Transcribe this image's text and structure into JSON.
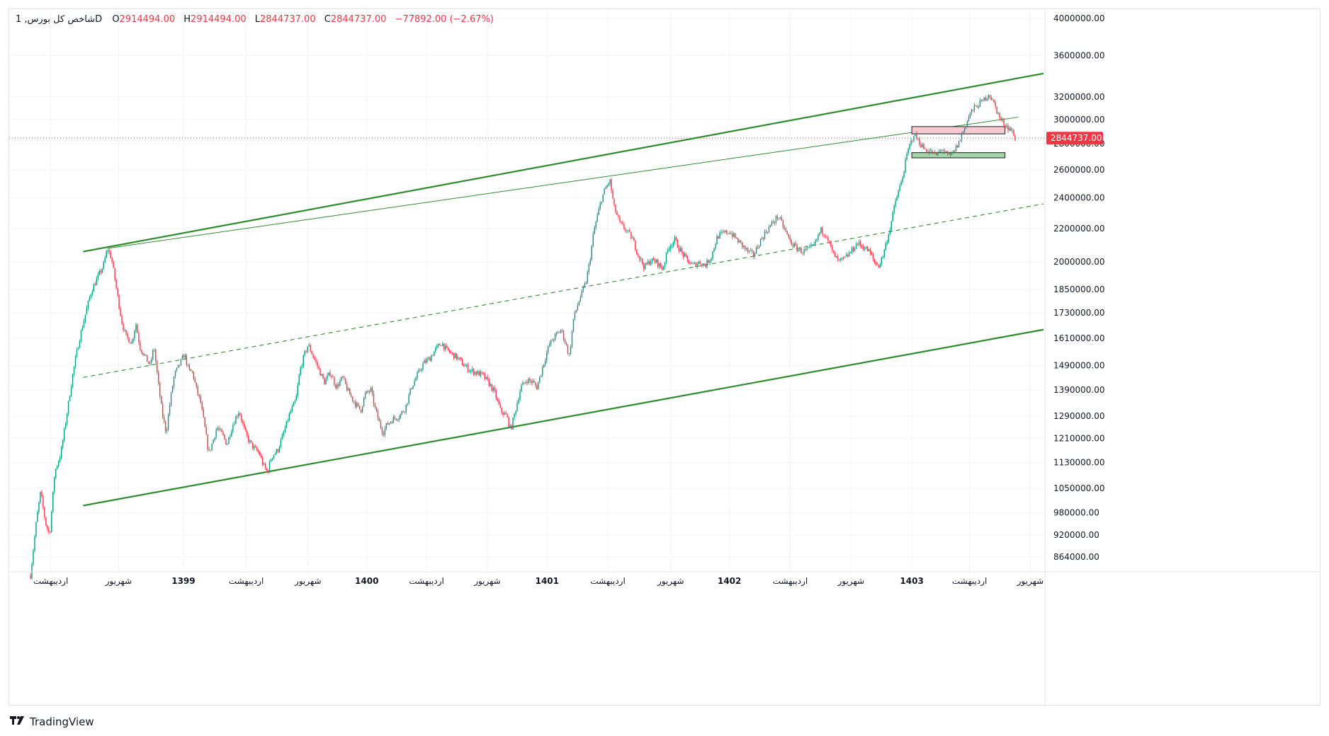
{
  "legend": {
    "symbol": "1 ,شاخص کل بورس",
    "interval": "D",
    "open_label": "O",
    "open": "2914494.00",
    "high_label": "H",
    "high": "2914494.00",
    "low_label": "L",
    "low": "2844737.00",
    "close_label": "C",
    "close": "2844737.00",
    "change": "−77892.00 (−2.67%)"
  },
  "brand": {
    "name": "TradingView"
  },
  "colors": {
    "up": "#089981",
    "down": "#f23645",
    "channel": "#2e8b2e",
    "resistance_box": "#f8c9cf",
    "support_box": "#a5d6a7",
    "price_label": "#f23645"
  },
  "chart_data": {
    "type": "candlestick",
    "title": "",
    "yscale": "log",
    "ylim": [
      800000,
      4000000
    ],
    "current_price": 2844737.0,
    "current_price_label": "2844737.00",
    "y_ticks": [
      {
        "v": 4000000,
        "label": "4000000.00"
      },
      {
        "v": 3600000,
        "label": "3600000.00"
      },
      {
        "v": 3200000,
        "label": "3200000.00"
      },
      {
        "v": 3000000,
        "label": "3000000.00"
      },
      {
        "v": 2800000,
        "label": "2800000.00"
      },
      {
        "v": 2600000,
        "label": "2600000.00"
      },
      {
        "v": 2400000,
        "label": "2400000.00"
      },
      {
        "v": 2200000,
        "label": "2200000.00"
      },
      {
        "v": 2000000,
        "label": "2000000.00"
      },
      {
        "v": 1850000,
        "label": "1850000.00"
      },
      {
        "v": 1730000,
        "label": "1730000.00"
      },
      {
        "v": 1610000,
        "label": "1610000.00"
      },
      {
        "v": 1490000,
        "label": "1490000.00"
      },
      {
        "v": 1390000,
        "label": "1390000.00"
      },
      {
        "v": 1290000,
        "label": "1290000.00"
      },
      {
        "v": 1210000,
        "label": "1210000.00"
      },
      {
        "v": 1130000,
        "label": "1130000.00"
      },
      {
        "v": 1050000,
        "label": "1050000.00"
      },
      {
        "v": 980000,
        "label": "980000.00"
      },
      {
        "v": 920000,
        "label": "920000.00"
      },
      {
        "v": 864000,
        "label": "864000.00"
      }
    ],
    "x_ticks": [
      {
        "t": 0.02,
        "label": "اردیبهشت",
        "bold": false
      },
      {
        "t": 0.087,
        "label": "شهریور",
        "bold": false
      },
      {
        "t": 0.151,
        "label": "1399",
        "bold": true
      },
      {
        "t": 0.213,
        "label": "اردیبهشت",
        "bold": false
      },
      {
        "t": 0.274,
        "label": "شهریور",
        "bold": false
      },
      {
        "t": 0.332,
        "label": "1400",
        "bold": true
      },
      {
        "t": 0.391,
        "label": "اردیبهشت",
        "bold": false
      },
      {
        "t": 0.451,
        "label": "شهریور",
        "bold": false
      },
      {
        "t": 0.51,
        "label": "1401",
        "bold": true
      },
      {
        "t": 0.57,
        "label": "اردیبهشت",
        "bold": false
      },
      {
        "t": 0.632,
        "label": "شهریور",
        "bold": false
      },
      {
        "t": 0.69,
        "label": "1402",
        "bold": true
      },
      {
        "t": 0.75,
        "label": "اردیبهشت",
        "bold": false
      },
      {
        "t": 0.81,
        "label": "شهریور",
        "bold": false
      },
      {
        "t": 0.87,
        "label": "1403",
        "bold": true
      },
      {
        "t": 0.927,
        "label": "اردیبهشت",
        "bold": false
      },
      {
        "t": 0.987,
        "label": "شهریور",
        "bold": false
      }
    ],
    "price_path": [
      [
        0.0,
        820000
      ],
      [
        0.006,
        960000
      ],
      [
        0.01,
        1040000
      ],
      [
        0.015,
        950000
      ],
      [
        0.019,
        920000
      ],
      [
        0.024,
        1100000
      ],
      [
        0.03,
        1160000
      ],
      [
        0.036,
        1300000
      ],
      [
        0.042,
        1460000
      ],
      [
        0.048,
        1600000
      ],
      [
        0.054,
        1720000
      ],
      [
        0.06,
        1840000
      ],
      [
        0.066,
        1910000
      ],
      [
        0.072,
        1980000
      ],
      [
        0.076,
        2080000
      ],
      [
        0.08,
        2020000
      ],
      [
        0.084,
        1880000
      ],
      [
        0.09,
        1690000
      ],
      [
        0.094,
        1620000
      ],
      [
        0.1,
        1590000
      ],
      [
        0.104,
        1680000
      ],
      [
        0.108,
        1570000
      ],
      [
        0.114,
        1520000
      ],
      [
        0.118,
        1490000
      ],
      [
        0.122,
        1570000
      ],
      [
        0.126,
        1420000
      ],
      [
        0.13,
        1300000
      ],
      [
        0.134,
        1230000
      ],
      [
        0.138,
        1350000
      ],
      [
        0.142,
        1450000
      ],
      [
        0.148,
        1500000
      ],
      [
        0.152,
        1540000
      ],
      [
        0.156,
        1470000
      ],
      [
        0.16,
        1460000
      ],
      [
        0.164,
        1390000
      ],
      [
        0.168,
        1340000
      ],
      [
        0.172,
        1250000
      ],
      [
        0.176,
        1160000
      ],
      [
        0.18,
        1200000
      ],
      [
        0.184,
        1250000
      ],
      [
        0.19,
        1220000
      ],
      [
        0.194,
        1190000
      ],
      [
        0.198,
        1240000
      ],
      [
        0.202,
        1280000
      ],
      [
        0.206,
        1310000
      ],
      [
        0.212,
        1230000
      ],
      [
        0.216,
        1200000
      ],
      [
        0.22,
        1180000
      ],
      [
        0.226,
        1160000
      ],
      [
        0.23,
        1120000
      ],
      [
        0.234,
        1100000
      ],
      [
        0.238,
        1150000
      ],
      [
        0.244,
        1170000
      ],
      [
        0.25,
        1230000
      ],
      [
        0.256,
        1300000
      ],
      [
        0.262,
        1350000
      ],
      [
        0.266,
        1470000
      ],
      [
        0.27,
        1530000
      ],
      [
        0.274,
        1580000
      ],
      [
        0.278,
        1540000
      ],
      [
        0.284,
        1480000
      ],
      [
        0.29,
        1420000
      ],
      [
        0.296,
        1460000
      ],
      [
        0.302,
        1400000
      ],
      [
        0.308,
        1440000
      ],
      [
        0.314,
        1380000
      ],
      [
        0.32,
        1340000
      ],
      [
        0.326,
        1310000
      ],
      [
        0.33,
        1370000
      ],
      [
        0.336,
        1390000
      ],
      [
        0.34,
        1320000
      ],
      [
        0.344,
        1270000
      ],
      [
        0.348,
        1230000
      ],
      [
        0.352,
        1260000
      ],
      [
        0.358,
        1280000
      ],
      [
        0.364,
        1290000
      ],
      [
        0.37,
        1320000
      ],
      [
        0.376,
        1400000
      ],
      [
        0.382,
        1450000
      ],
      [
        0.388,
        1500000
      ],
      [
        0.394,
        1520000
      ],
      [
        0.4,
        1560000
      ],
      [
        0.406,
        1590000
      ],
      [
        0.41,
        1560000
      ],
      [
        0.416,
        1540000
      ],
      [
        0.422,
        1520000
      ],
      [
        0.428,
        1490000
      ],
      [
        0.434,
        1470000
      ],
      [
        0.44,
        1460000
      ],
      [
        0.446,
        1450000
      ],
      [
        0.452,
        1420000
      ],
      [
        0.458,
        1380000
      ],
      [
        0.464,
        1310000
      ],
      [
        0.47,
        1290000
      ],
      [
        0.474,
        1240000
      ],
      [
        0.478,
        1300000
      ],
      [
        0.484,
        1400000
      ],
      [
        0.49,
        1430000
      ],
      [
        0.496,
        1420000
      ],
      [
        0.5,
        1400000
      ],
      [
        0.506,
        1490000
      ],
      [
        0.512,
        1580000
      ],
      [
        0.518,
        1620000
      ],
      [
        0.524,
        1650000
      ],
      [
        0.528,
        1590000
      ],
      [
        0.532,
        1530000
      ],
      [
        0.536,
        1700000
      ],
      [
        0.542,
        1800000
      ],
      [
        0.548,
        1880000
      ],
      [
        0.552,
        2000000
      ],
      [
        0.556,
        2180000
      ],
      [
        0.56,
        2290000
      ],
      [
        0.564,
        2400000
      ],
      [
        0.568,
        2470000
      ],
      [
        0.572,
        2520000
      ],
      [
        0.576,
        2340000
      ],
      [
        0.582,
        2230000
      ],
      [
        0.588,
        2190000
      ],
      [
        0.594,
        2140000
      ],
      [
        0.6,
        2040000
      ],
      [
        0.606,
        1970000
      ],
      [
        0.612,
        2010000
      ],
      [
        0.618,
        2000000
      ],
      [
        0.624,
        1960000
      ],
      [
        0.63,
        2090000
      ],
      [
        0.636,
        2130000
      ],
      [
        0.642,
        2060000
      ],
      [
        0.648,
        2010000
      ],
      [
        0.654,
        1980000
      ],
      [
        0.66,
        2000000
      ],
      [
        0.666,
        1980000
      ],
      [
        0.672,
        2030000
      ],
      [
        0.678,
        2150000
      ],
      [
        0.684,
        2170000
      ],
      [
        0.69,
        2180000
      ],
      [
        0.696,
        2140000
      ],
      [
        0.702,
        2100000
      ],
      [
        0.708,
        2060000
      ],
      [
        0.714,
        2040000
      ],
      [
        0.72,
        2120000
      ],
      [
        0.726,
        2180000
      ],
      [
        0.732,
        2230000
      ],
      [
        0.738,
        2280000
      ],
      [
        0.744,
        2200000
      ],
      [
        0.75,
        2120000
      ],
      [
        0.756,
        2080000
      ],
      [
        0.762,
        2060000
      ],
      [
        0.768,
        2070000
      ],
      [
        0.774,
        2100000
      ],
      [
        0.78,
        2190000
      ],
      [
        0.786,
        2160000
      ],
      [
        0.792,
        2050000
      ],
      [
        0.798,
        2000000
      ],
      [
        0.804,
        2020000
      ],
      [
        0.81,
        2060000
      ],
      [
        0.816,
        2110000
      ],
      [
        0.822,
        2090000
      ],
      [
        0.828,
        2060000
      ],
      [
        0.834,
        1990000
      ],
      [
        0.838,
        1980000
      ],
      [
        0.842,
        2050000
      ],
      [
        0.848,
        2190000
      ],
      [
        0.854,
        2380000
      ],
      [
        0.86,
        2520000
      ],
      [
        0.866,
        2740000
      ],
      [
        0.872,
        2880000
      ],
      [
        0.876,
        2830000
      ],
      [
        0.882,
        2760000
      ],
      [
        0.888,
        2740000
      ],
      [
        0.894,
        2710000
      ],
      [
        0.9,
        2760000
      ],
      [
        0.906,
        2700000
      ],
      [
        0.91,
        2720000
      ],
      [
        0.916,
        2800000
      ],
      [
        0.922,
        2930000
      ],
      [
        0.928,
        3060000
      ],
      [
        0.934,
        3120000
      ],
      [
        0.94,
        3160000
      ],
      [
        0.946,
        3230000
      ],
      [
        0.952,
        3120000
      ],
      [
        0.958,
        2990000
      ],
      [
        0.964,
        2940000
      ],
      [
        0.968,
        2914494
      ],
      [
        0.972,
        2844737
      ]
    ],
    "trendlines": [
      {
        "name": "channel-top",
        "style": "solid-thick",
        "p1": [
          0.052,
          2060000
        ],
        "p2": [
          1.0,
          3420000
        ]
      },
      {
        "name": "channel-bottom",
        "style": "solid-thick",
        "p1": [
          0.052,
          1000000
        ],
        "p2": [
          1.0,
          1650000
        ]
      },
      {
        "name": "median-line",
        "style": "dashed",
        "p1": [
          0.052,
          1440000
        ],
        "p2": [
          1.0,
          2360000
        ]
      },
      {
        "name": "resistance-line",
        "style": "solid-thin",
        "p1": [
          0.077,
          2080000
        ],
        "p2": [
          0.975,
          3020000
        ]
      }
    ],
    "zones": [
      {
        "name": "resistance-box",
        "x": [
          0.87,
          0.962
        ],
        "y": [
          2880000,
          2940000
        ],
        "color": "#f8c9cf"
      },
      {
        "name": "support-box",
        "x": [
          0.87,
          0.962
        ],
        "y": [
          2690000,
          2730000
        ],
        "color": "#a5d6a7"
      }
    ]
  }
}
